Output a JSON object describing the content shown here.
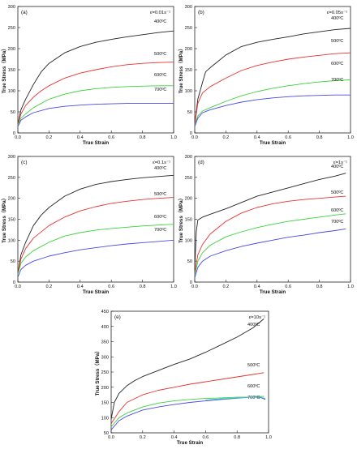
{
  "chart_data": [
    {
      "type": "line",
      "panel_label": "(a)",
      "rate_label": "ε̇=0.01s⁻¹",
      "xlabel": "True Strain",
      "ylabel": "True Stress（MPa）",
      "xlim": [
        0,
        1.0
      ],
      "ylim": [
        0,
        300
      ],
      "xticks": [
        "0.0",
        "0.2",
        "0.4",
        "0.6",
        "0.8",
        "1.0"
      ],
      "yticks": [
        "0",
        "50",
        "100",
        "150",
        "200",
        "250",
        "300"
      ],
      "series": [
        {
          "name": "400ºC",
          "color": "#222222",
          "x": [
            0,
            0.02,
            0.05,
            0.1,
            0.15,
            0.2,
            0.3,
            0.4,
            0.5,
            0.6,
            0.7,
            0.8,
            0.9,
            1.0
          ],
          "y": [
            20,
            55,
            80,
            115,
            145,
            165,
            190,
            205,
            215,
            222,
            228,
            233,
            238,
            242
          ]
        },
        {
          "name": "500ºC",
          "color": "#e8322e",
          "x": [
            0,
            0.02,
            0.05,
            0.1,
            0.15,
            0.2,
            0.3,
            0.4,
            0.5,
            0.6,
            0.7,
            0.8,
            0.9,
            1.0
          ],
          "y": [
            20,
            45,
            65,
            85,
            100,
            112,
            130,
            142,
            150,
            157,
            162,
            165,
            167,
            168
          ]
        },
        {
          "name": "600ºC",
          "color": "#3cd23c",
          "x": [
            0,
            0.02,
            0.05,
            0.1,
            0.2,
            0.3,
            0.4,
            0.5,
            0.6,
            0.7,
            0.8,
            0.9,
            1.0
          ],
          "y": [
            18,
            35,
            45,
            60,
            80,
            92,
            100,
            105,
            108,
            110,
            111,
            112,
            112
          ]
        },
        {
          "name": "700ºC",
          "color": "#4848e8",
          "x": [
            0,
            0.02,
            0.05,
            0.1,
            0.2,
            0.3,
            0.4,
            0.5,
            0.6,
            0.7,
            0.8,
            0.9,
            1.0
          ],
          "y": [
            15,
            30,
            38,
            48,
            58,
            63,
            66,
            68,
            69,
            70,
            70,
            70,
            70
          ]
        }
      ]
    },
    {
      "type": "line",
      "panel_label": "(b)",
      "rate_label": "ε̇=0.05s⁻¹",
      "xlabel": "True Strain",
      "ylabel": "True Stress（MPa）",
      "xlim": [
        0,
        1.0
      ],
      "ylim": [
        0,
        300
      ],
      "xticks": [
        "0.0",
        "0.2",
        "0.4",
        "0.6",
        "0.8",
        "1.0"
      ],
      "yticks": [
        "0",
        "50",
        "100",
        "150",
        "200",
        "250",
        "300"
      ],
      "series": [
        {
          "name": "400ºC",
          "color": "#222222",
          "x": [
            0,
            0.02,
            0.05,
            0.07,
            0.1,
            0.15,
            0.2,
            0.3,
            0.4,
            0.5,
            0.6,
            0.7,
            0.8,
            0.9,
            1.0
          ],
          "y": [
            20,
            80,
            120,
            145,
            155,
            170,
            185,
            205,
            215,
            222,
            228,
            235,
            240,
            245,
            248
          ]
        },
        {
          "name": "500ºC",
          "color": "#e8322e",
          "x": [
            0,
            0.02,
            0.05,
            0.1,
            0.2,
            0.3,
            0.4,
            0.5,
            0.6,
            0.7,
            0.8,
            0.9,
            1.0
          ],
          "y": [
            20,
            70,
            95,
            110,
            130,
            148,
            160,
            168,
            175,
            180,
            184,
            188,
            190
          ]
        },
        {
          "name": "600ºC",
          "color": "#3cd23c",
          "x": [
            0,
            0.02,
            0.05,
            0.1,
            0.2,
            0.3,
            0.4,
            0.5,
            0.6,
            0.7,
            0.8,
            0.9,
            1.0
          ],
          "y": [
            18,
            40,
            52,
            60,
            75,
            88,
            98,
            106,
            112,
            117,
            121,
            124,
            126
          ]
        },
        {
          "name": "700ºC",
          "color": "#4848e8",
          "x": [
            0,
            0.02,
            0.05,
            0.1,
            0.2,
            0.3,
            0.4,
            0.5,
            0.6,
            0.7,
            0.8,
            0.9,
            1.0
          ],
          "y": [
            15,
            35,
            48,
            55,
            65,
            73,
            79,
            83,
            86,
            88,
            89,
            90,
            90
          ]
        }
      ]
    },
    {
      "type": "line",
      "panel_label": "(c)",
      "rate_label": "ε̇=0.1s⁻¹",
      "xlabel": "True Strain",
      "ylabel": "True Stress（MPa）",
      "xlim": [
        0,
        1.0
      ],
      "ylim": [
        0,
        300
      ],
      "xticks": [
        "0.0",
        "0.2",
        "0.4",
        "0.6",
        "0.8",
        "1.0"
      ],
      "yticks": [
        "0",
        "50",
        "100",
        "150",
        "200",
        "250",
        "300"
      ],
      "series": [
        {
          "name": "400ºC",
          "color": "#222222",
          "x": [
            0,
            0.02,
            0.05,
            0.1,
            0.15,
            0.2,
            0.3,
            0.4,
            0.5,
            0.6,
            0.7,
            0.8,
            0.9,
            1.0
          ],
          "y": [
            20,
            65,
            95,
            135,
            160,
            178,
            205,
            222,
            233,
            240,
            245,
            249,
            252,
            255
          ]
        },
        {
          "name": "500ºC",
          "color": "#e8322e",
          "x": [
            0,
            0.02,
            0.05,
            0.1,
            0.2,
            0.3,
            0.4,
            0.5,
            0.6,
            0.7,
            0.8,
            0.9,
            1.0
          ],
          "y": [
            20,
            55,
            80,
            105,
            135,
            155,
            170,
            180,
            188,
            193,
            197,
            200,
            202
          ]
        },
        {
          "name": "600ºC",
          "color": "#3cd23c",
          "x": [
            0,
            0.02,
            0.05,
            0.1,
            0.2,
            0.3,
            0.4,
            0.5,
            0.6,
            0.7,
            0.8,
            0.9,
            1.0
          ],
          "y": [
            18,
            45,
            60,
            75,
            95,
            110,
            118,
            124,
            128,
            131,
            134,
            136,
            138
          ]
        },
        {
          "name": "700ºC",
          "color": "#4848e8",
          "x": [
            0,
            0.02,
            0.05,
            0.1,
            0.2,
            0.3,
            0.4,
            0.5,
            0.6,
            0.7,
            0.8,
            0.9,
            1.0
          ],
          "y": [
            12,
            30,
            40,
            50,
            62,
            70,
            77,
            82,
            87,
            91,
            94,
            97,
            100
          ]
        }
      ]
    },
    {
      "type": "line",
      "panel_label": "(d)",
      "rate_label": "ε̇=1s⁻¹",
      "xlabel": "True Strain",
      "ylabel": "True Stress（MPa）",
      "xlim": [
        0,
        1.0
      ],
      "ylim": [
        0,
        300
      ],
      "xticks": [
        "0.0",
        "0.2",
        "0.4",
        "0.6",
        "0.8",
        "1.0"
      ],
      "yticks": [
        "0",
        "50",
        "100",
        "150",
        "200",
        "250",
        "300"
      ],
      "series": [
        {
          "name": "400ºC",
          "color": "#222222",
          "x": [
            0,
            0.01,
            0.02,
            0.05,
            0.1,
            0.2,
            0.3,
            0.4,
            0.5,
            0.6,
            0.7,
            0.8,
            0.9,
            0.97
          ],
          "y": [
            30,
            120,
            148,
            155,
            162,
            175,
            190,
            205,
            215,
            225,
            235,
            245,
            253,
            260
          ]
        },
        {
          "name": "500ºC",
          "color": "#e8322e",
          "x": [
            0,
            0.02,
            0.05,
            0.1,
            0.2,
            0.3,
            0.4,
            0.5,
            0.6,
            0.7,
            0.8,
            0.9,
            0.97
          ],
          "y": [
            20,
            65,
            90,
            115,
            145,
            165,
            178,
            187,
            193,
            197,
            200,
            203,
            205
          ]
        },
        {
          "name": "600ºC",
          "color": "#3cd23c",
          "x": [
            0,
            0.02,
            0.05,
            0.1,
            0.2,
            0.3,
            0.4,
            0.5,
            0.6,
            0.7,
            0.8,
            0.9,
            0.97
          ],
          "y": [
            15,
            50,
            70,
            88,
            108,
            120,
            130,
            138,
            145,
            150,
            155,
            160,
            163
          ]
        },
        {
          "name": "700ºC",
          "color": "#4848e8",
          "x": [
            0,
            0.02,
            0.05,
            0.1,
            0.2,
            0.3,
            0.4,
            0.5,
            0.6,
            0.7,
            0.8,
            0.9,
            0.97
          ],
          "y": [
            10,
            35,
            50,
            62,
            75,
            85,
            93,
            100,
            107,
            112,
            118,
            123,
            127
          ]
        }
      ]
    },
    {
      "type": "line",
      "panel_label": "(e)",
      "rate_label": "ε̇=10s⁻¹",
      "xlabel": "True Strain",
      "ylabel": "True Stress（MPa）",
      "xlim": [
        0,
        1.0
      ],
      "ylim": [
        50,
        450
      ],
      "xticks": [
        "0.0",
        "0.2",
        "0.4",
        "0.6",
        "0.8",
        "1.0"
      ],
      "yticks": [
        "50",
        "100",
        "150",
        "200",
        "250",
        "300",
        "350",
        "400",
        "450"
      ],
      "series": [
        {
          "name": "400ºC",
          "color": "#222222",
          "x": [
            0,
            0.02,
            0.05,
            0.1,
            0.15,
            0.2,
            0.3,
            0.4,
            0.5,
            0.6,
            0.7,
            0.8,
            0.9,
            0.97
          ],
          "y": [
            95,
            150,
            180,
            205,
            222,
            235,
            255,
            275,
            293,
            315,
            340,
            365,
            395,
            425
          ]
        },
        {
          "name": "500ºC",
          "color": "#e8322e",
          "x": [
            0,
            0.05,
            0.1,
            0.2,
            0.3,
            0.4,
            0.5,
            0.6,
            0.7,
            0.8,
            0.9,
            0.97
          ],
          "y": [
            80,
            120,
            150,
            175,
            190,
            200,
            210,
            218,
            226,
            234,
            242,
            248
          ]
        },
        {
          "name": "600ºC",
          "color": "#3cd23c",
          "x": [
            0,
            0.05,
            0.1,
            0.2,
            0.3,
            0.4,
            0.5,
            0.6,
            0.7,
            0.8,
            0.9,
            0.97
          ],
          "y": [
            70,
            100,
            115,
            135,
            148,
            155,
            160,
            163,
            165,
            167,
            168,
            170
          ]
        },
        {
          "name": "700ºC",
          "color": "#4848e8",
          "x": [
            0,
            0.05,
            0.1,
            0.2,
            0.3,
            0.4,
            0.5,
            0.6,
            0.7,
            0.8,
            0.9,
            0.95,
            0.98
          ],
          "y": [
            60,
            90,
            105,
            125,
            135,
            143,
            150,
            155,
            160,
            164,
            168,
            166,
            160
          ]
        },
        {
          "name": "",
          "color": "#3cc8d8",
          "x": [
            0.6,
            0.7,
            0.8,
            0.9,
            0.95,
            0.98
          ],
          "y": [
            158,
            162,
            165,
            168,
            167,
            163
          ]
        }
      ]
    }
  ]
}
